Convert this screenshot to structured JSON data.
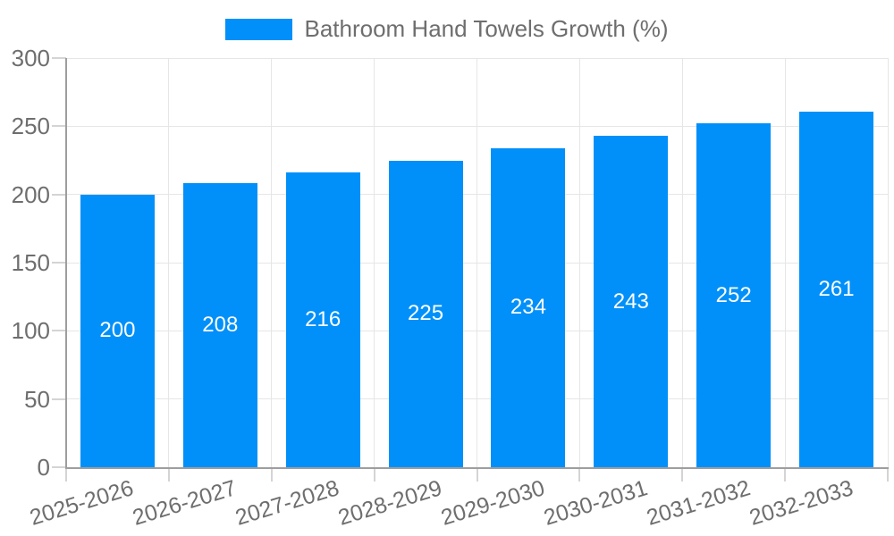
{
  "legend": {
    "label": "Bathroom Hand Towels Growth (%)"
  },
  "chart_data": {
    "type": "bar",
    "title": "Bathroom Hand Towels Growth (%)",
    "categories": [
      "2025-2026",
      "2026-2027",
      "2027-2028",
      "2028-2029",
      "2029-2030",
      "2030-2031",
      "2031-2032",
      "2032-2033"
    ],
    "series": [
      {
        "name": "Bathroom Hand Towels Growth (%)",
        "values": [
          200,
          208,
          216,
          225,
          234,
          243,
          252,
          261
        ]
      }
    ],
    "value_labels": [
      "200",
      "208",
      "216",
      "225",
      "234",
      "243",
      "252",
      "261"
    ],
    "xlabel": "",
    "ylabel": "",
    "ylim": [
      0,
      300
    ],
    "ytick_step": 50,
    "yticks": [
      0,
      50,
      100,
      150,
      200,
      250,
      300
    ],
    "grid": true,
    "legend_position": "top",
    "x_label_rotation_deg": -17,
    "colors": {
      "bar": "#0190f9",
      "value_label": "#ffffff",
      "axis_label": "#6e6e6e",
      "legend_text": "#6e6e6e",
      "axis_line": "#9e9e9e",
      "grid_line": "#e6e6e6",
      "tick_line": "#d4d4d4",
      "background": "#ffffff"
    }
  }
}
